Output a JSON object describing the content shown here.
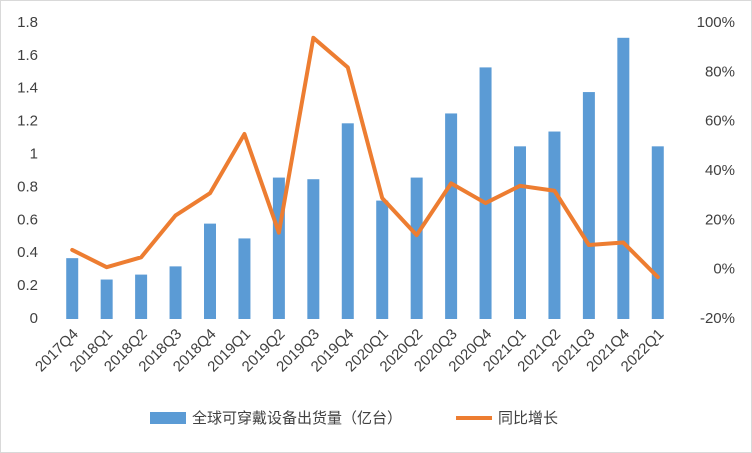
{
  "chart_data": {
    "type": "bar-line",
    "categories": [
      "2017Q4",
      "2018Q1",
      "2018Q2",
      "2018Q3",
      "2018Q4",
      "2019Q1",
      "2019Q2",
      "2019Q3",
      "2019Q4",
      "2020Q1",
      "2020Q2",
      "2020Q3",
      "2020Q4",
      "2021Q1",
      "2021Q2",
      "2021Q3",
      "2021Q4",
      "2022Q1"
    ],
    "series": [
      {
        "name": "全球可穿戴设备出货量（亿台）",
        "type": "bar",
        "color": "#5b9bd5",
        "values": [
          0.37,
          0.24,
          0.27,
          0.32,
          0.58,
          0.49,
          0.86,
          0.85,
          1.19,
          0.72,
          0.86,
          1.25,
          1.53,
          1.05,
          1.14,
          1.38,
          1.71,
          1.05
        ]
      },
      {
        "name": "同比增长",
        "type": "line",
        "axis": "y2",
        "color": "#ed7d31",
        "values": [
          8,
          1,
          5,
          22,
          31,
          55,
          15,
          94,
          82,
          29,
          14,
          35,
          27,
          34,
          32,
          10,
          11,
          -3
        ]
      }
    ],
    "ylim": [
      0,
      1.8
    ],
    "yticks": [
      0,
      0.2,
      0.4,
      0.6,
      0.8,
      1,
      1.2,
      1.4,
      1.6,
      1.8
    ],
    "y2lim": [
      -20,
      100
    ],
    "y2ticks": [
      {
        "value": -20,
        "label": "-20%"
      },
      {
        "value": 0,
        "label": "0%"
      },
      {
        "value": 20,
        "label": "20%"
      },
      {
        "value": 40,
        "label": "40%"
      },
      {
        "value": 60,
        "label": "60%"
      },
      {
        "value": 80,
        "label": "80%"
      },
      {
        "value": 100,
        "label": "100%"
      }
    ],
    "grid": false,
    "legend": "bottom"
  }
}
